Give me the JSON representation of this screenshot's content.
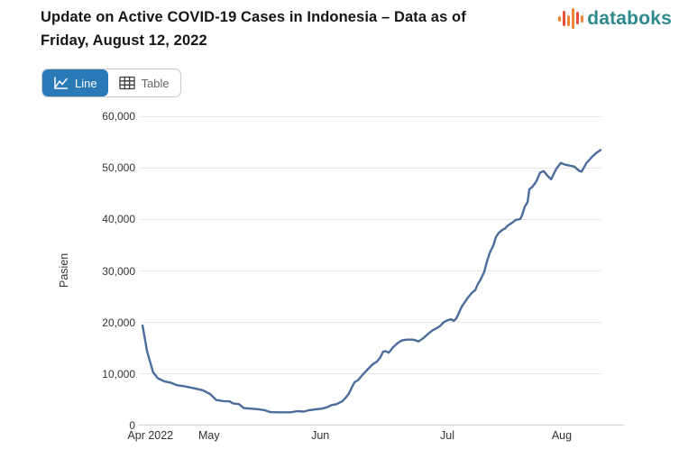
{
  "header": {
    "title_line1": "Update on Active COVID-19 Cases in Indonesia – Data as of",
    "title_line2": "Friday, August 12, 2022",
    "brand": "databoks"
  },
  "toolbar": {
    "line_label": "Line",
    "table_label": "Table",
    "active_view": "Line"
  },
  "colors": {
    "brand_text": "#2E8A8C",
    "logo_orange": "#F08536",
    "logo_red": "#E94F3D",
    "button_active": "#2A7AB8",
    "line": "#4A6D9C",
    "grid": "#E6E6E6",
    "axis": "#D4D4D4",
    "tick_text": "#333333"
  },
  "chart_data": {
    "type": "line",
    "title": "Update on Active COVID-19 Cases in Indonesia – Data as of Friday, August 12, 2022",
    "xlabel": "",
    "ylabel": "Pasien",
    "ylim": [
      0,
      60000
    ],
    "yticks": [
      0,
      10000,
      20000,
      30000,
      40000,
      50000,
      60000
    ],
    "grid": "horizontal",
    "legend": "none",
    "xticks": [
      {
        "label": "Apr 2022",
        "f": 0.023
      },
      {
        "label": "May",
        "f": 0.15
      },
      {
        "label": "Jun",
        "f": 0.391
      },
      {
        "label": "Jul",
        "f": 0.666
      },
      {
        "label": "Aug",
        "f": 0.914
      }
    ],
    "series_name": "Pasien (active COVID-19 cases)",
    "points": [
      {
        "d": "Apr 1",
        "v": 19400,
        "f": 0.006
      },
      {
        "d": "Apr 3",
        "v": 14300,
        "f": 0.016
      },
      {
        "d": "Apr 6",
        "v": 10300,
        "f": 0.029
      },
      {
        "d": "Apr 8",
        "v": 9150,
        "f": 0.039
      },
      {
        "d": "Apr 11",
        "v": 8550,
        "f": 0.053
      },
      {
        "d": "Apr 14",
        "v": 8250,
        "f": 0.068
      },
      {
        "d": "Apr 16",
        "v": 7800,
        "f": 0.08
      },
      {
        "d": "Apr 20",
        "v": 7550,
        "f": 0.098
      },
      {
        "d": "Apr 24",
        "v": 7200,
        "f": 0.117
      },
      {
        "d": "Apr 28",
        "v": 6800,
        "f": 0.137
      },
      {
        "d": "May 1",
        "v": 6100,
        "f": 0.152
      },
      {
        "d": "May 3",
        "v": 4900,
        "f": 0.166
      },
      {
        "d": "May 5",
        "v": 4700,
        "f": 0.182
      },
      {
        "d": "May 7",
        "v": 4650,
        "f": 0.195
      },
      {
        "d": "May 8",
        "v": 4280,
        "f": 0.201
      },
      {
        "d": "May 10",
        "v": 4100,
        "f": 0.215
      },
      {
        "d": "May 11",
        "v": 3350,
        "f": 0.225
      },
      {
        "d": "May 13",
        "v": 3250,
        "f": 0.24
      },
      {
        "d": "May 15",
        "v": 3100,
        "f": 0.258
      },
      {
        "d": "May 16",
        "v": 2950,
        "f": 0.27
      },
      {
        "d": "May 18",
        "v": 2550,
        "f": 0.283
      },
      {
        "d": "May 20",
        "v": 2530,
        "f": 0.299
      },
      {
        "d": "May 22",
        "v": 2520,
        "f": 0.314
      },
      {
        "d": "May 24",
        "v": 2540,
        "f": 0.328
      },
      {
        "d": "May 26",
        "v": 2750,
        "f": 0.342
      },
      {
        "d": "May 27",
        "v": 2650,
        "f": 0.355
      },
      {
        "d": "May 29",
        "v": 2950,
        "f": 0.367
      },
      {
        "d": "May 31",
        "v": 3100,
        "f": 0.381
      },
      {
        "d": "Jun 1",
        "v": 3250,
        "f": 0.395
      },
      {
        "d": "Jun 2",
        "v": 3500,
        "f": 0.406
      },
      {
        "d": "Jun 3",
        "v": 3950,
        "f": 0.416
      },
      {
        "d": "Jun 4",
        "v": 4100,
        "f": 0.426
      },
      {
        "d": "Jun 5",
        "v": 4700,
        "f": 0.439
      },
      {
        "d": "Jun 6",
        "v": 5250,
        "f": 0.445
      },
      {
        "d": "Jun 7",
        "v": 6150,
        "f": 0.453
      },
      {
        "d": "Jun 8",
        "v": 7300,
        "f": 0.459
      },
      {
        "d": "Jun 9",
        "v": 8350,
        "f": 0.465
      },
      {
        "d": "Jun 10",
        "v": 8800,
        "f": 0.473
      },
      {
        "d": "Jun 11",
        "v": 9950,
        "f": 0.484
      },
      {
        "d": "Jun 12",
        "v": 10900,
        "f": 0.494
      },
      {
        "d": "Jun 13",
        "v": 11800,
        "f": 0.504
      },
      {
        "d": "Jun 14",
        "v": 12400,
        "f": 0.514
      },
      {
        "d": "Jun 15",
        "v": 13200,
        "f": 0.521
      },
      {
        "d": "Jun 16",
        "v": 14300,
        "f": 0.527
      },
      {
        "d": "Jun 17",
        "v": 14400,
        "f": 0.533
      },
      {
        "d": "Jun 18",
        "v": 14100,
        "f": 0.539
      },
      {
        "d": "Jun 19",
        "v": 15200,
        "f": 0.549
      },
      {
        "d": "Jun 20",
        "v": 16000,
        "f": 0.559
      },
      {
        "d": "Jun 21",
        "v": 16500,
        "f": 0.568
      },
      {
        "d": "Jun 22",
        "v": 16650,
        "f": 0.58
      },
      {
        "d": "Jun 23",
        "v": 16650,
        "f": 0.592
      },
      {
        "d": "Jun 24",
        "v": 16300,
        "f": 0.604
      },
      {
        "d": "Jun 25",
        "v": 17000,
        "f": 0.615
      },
      {
        "d": "Jun 26",
        "v": 17800,
        "f": 0.625
      },
      {
        "d": "Jun 28",
        "v": 18500,
        "f": 0.635
      },
      {
        "d": "Jun 29",
        "v": 18850,
        "f": 0.643
      },
      {
        "d": "Jun 30",
        "v": 19250,
        "f": 0.65
      },
      {
        "d": "Jul 1",
        "v": 20000,
        "f": 0.658
      },
      {
        "d": "Jul 2",
        "v": 20400,
        "f": 0.666
      },
      {
        "d": "Jul 3",
        "v": 20600,
        "f": 0.674
      },
      {
        "d": "Jul 4",
        "v": 20300,
        "f": 0.68
      },
      {
        "d": "Jul 5",
        "v": 20800,
        "f": 0.686
      },
      {
        "d": "Jul 6",
        "v": 21800,
        "f": 0.691
      },
      {
        "d": "Jul 7",
        "v": 23000,
        "f": 0.697
      },
      {
        "d": "Jul 8",
        "v": 23800,
        "f": 0.703
      },
      {
        "d": "Jul 9",
        "v": 24600,
        "f": 0.709
      },
      {
        "d": "Jul 10",
        "v": 25700,
        "f": 0.719
      },
      {
        "d": "Jul 11",
        "v": 26300,
        "f": 0.727
      },
      {
        "d": "Jul 12",
        "v": 27400,
        "f": 0.732
      },
      {
        "d": "Jul 13",
        "v": 28300,
        "f": 0.738
      },
      {
        "d": "Jul 14",
        "v": 29800,
        "f": 0.746
      },
      {
        "d": "Jul 15",
        "v": 31800,
        "f": 0.752
      },
      {
        "d": "Jul 16",
        "v": 33500,
        "f": 0.758
      },
      {
        "d": "Jul 17",
        "v": 35000,
        "f": 0.766
      },
      {
        "d": "Jul 18",
        "v": 36500,
        "f": 0.771
      },
      {
        "d": "Jul 19",
        "v": 37350,
        "f": 0.777
      },
      {
        "d": "Jul 20",
        "v": 37950,
        "f": 0.785
      },
      {
        "d": "Jul 21",
        "v": 38250,
        "f": 0.791
      },
      {
        "d": "Jul 22",
        "v": 38800,
        "f": 0.797
      },
      {
        "d": "Jul 23",
        "v": 39400,
        "f": 0.807
      },
      {
        "d": "Jul 24",
        "v": 39900,
        "f": 0.814
      },
      {
        "d": "Jul 25",
        "v": 40100,
        "f": 0.824
      },
      {
        "d": "Jul 26",
        "v": 40800,
        "f": 0.828
      },
      {
        "d": "Jul 27",
        "v": 42500,
        "f": 0.834
      },
      {
        "d": "Jul 28",
        "v": 43400,
        "f": 0.84
      },
      {
        "d": "Jul 29",
        "v": 45900,
        "f": 0.844
      },
      {
        "d": "Jul 30",
        "v": 46300,
        "f": 0.85
      },
      {
        "d": "Jul 31",
        "v": 47400,
        "f": 0.859
      },
      {
        "d": "Aug 1",
        "v": 49100,
        "f": 0.867
      },
      {
        "d": "Aug 2",
        "v": 49400,
        "f": 0.875
      },
      {
        "d": "Aug 3",
        "v": 48500,
        "f": 0.883
      },
      {
        "d": "Aug 4",
        "v": 47800,
        "f": 0.891
      },
      {
        "d": "Aug 5",
        "v": 49800,
        "f": 0.902
      },
      {
        "d": "Aug 6",
        "v": 51000,
        "f": 0.912
      },
      {
        "d": "Aug 7",
        "v": 50650,
        "f": 0.922
      },
      {
        "d": "Aug 8",
        "v": 50450,
        "f": 0.932
      },
      {
        "d": "Aug 9",
        "v": 50300,
        "f": 0.941
      },
      {
        "d": "Aug 10",
        "v": 49500,
        "f": 0.951
      },
      {
        "d": "Aug 10",
        "v": 49300,
        "f": 0.957
      },
      {
        "d": "Aug 11",
        "v": 50900,
        "f": 0.967
      },
      {
        "d": "Aug 11",
        "v": 51900,
        "f": 0.977
      },
      {
        "d": "Aug 12",
        "v": 52400,
        "f": 0.982
      },
      {
        "d": "Aug 12",
        "v": 53000,
        "f": 0.99
      },
      {
        "d": "Aug 12",
        "v": 53500,
        "f": 0.998
      }
    ]
  }
}
